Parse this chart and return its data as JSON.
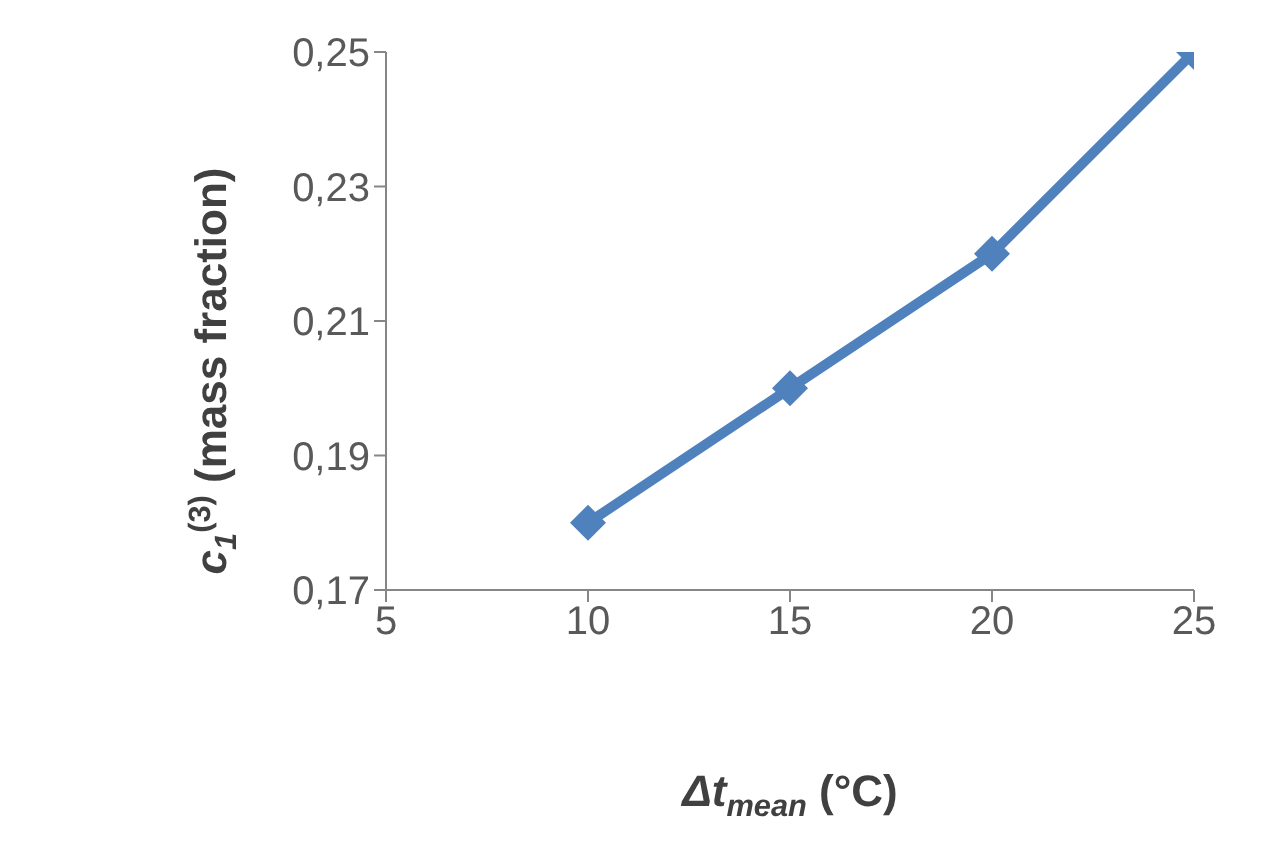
{
  "chart_data": {
    "type": "line",
    "xlabel": "Δt$_{mean}$ (°C)",
    "ylabel": "c$_{1}$$^{(3)}$ (mass fraction)",
    "x": [
      10,
      15,
      20,
      25
    ],
    "series": [
      {
        "color": "#4f81bd",
        "values": [
          0.18,
          0.2,
          0.22,
          0.25
        ]
      }
    ],
    "xlim": [
      5,
      25
    ],
    "xticks": [
      5,
      10,
      15,
      20,
      25
    ],
    "ylim": [
      0.17,
      0.25
    ],
    "yticks": [
      {
        "value": 0.17,
        "label": "0,17"
      },
      {
        "value": 0.19,
        "label": "0,19"
      },
      {
        "value": 0.21,
        "label": "0,21"
      },
      {
        "value": 0.23,
        "label": "0,23"
      },
      {
        "value": 0.25,
        "label": "0,25"
      }
    ],
    "grid": false,
    "legend": false,
    "marker": "diamond",
    "line_style": "solid"
  }
}
